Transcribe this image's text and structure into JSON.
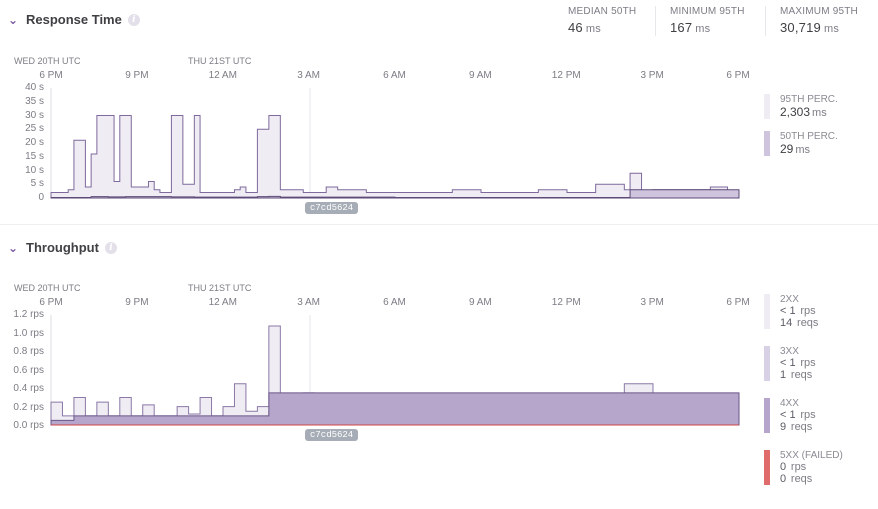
{
  "response_time": {
    "title": "Response Time",
    "info_icon": "i",
    "stats": [
      {
        "label": "MEDIAN 50TH",
        "value": "46",
        "unit": "ms"
      },
      {
        "label": "MINIMUM 95TH",
        "value": "167",
        "unit": "ms"
      },
      {
        "label": "MAXIMUM 95TH",
        "value": "30,719",
        "unit": "ms"
      }
    ],
    "day_labels": [
      "WED 20TH UTC",
      "THU 21ST UTC"
    ],
    "hour_labels": [
      "6 PM",
      "9 PM",
      "12 AM",
      "3 AM",
      "6 AM",
      "9 AM",
      "12 PM",
      "3 PM",
      "6 PM"
    ],
    "y_labels": [
      "40 s",
      "35 s",
      "30 s",
      "25 s",
      "20 s",
      "15 s",
      "10 s",
      "5 s",
      "0"
    ],
    "legend": [
      {
        "label": "95TH PERC.",
        "value": "2,303",
        "unit": "ms",
        "color": "#efecf4"
      },
      {
        "label": "50TH PERC.",
        "value": "29",
        "unit": "ms",
        "color": "#cfc4dd"
      }
    ],
    "deploy": "c7cd5624"
  },
  "throughput": {
    "title": "Throughput",
    "info_icon": "i",
    "day_labels": [
      "WED 20TH UTC",
      "THU 21ST UTC"
    ],
    "hour_labels": [
      "6 PM",
      "9 PM",
      "12 AM",
      "3 AM",
      "6 AM",
      "9 AM",
      "12 PM",
      "3 PM",
      "6 PM"
    ],
    "y_labels": [
      "1.2 rps",
      "1.0 rps",
      "0.8 rps",
      "0.6 rps",
      "0.4 rps",
      "0.2 rps",
      "0.0 rps"
    ],
    "legend": [
      {
        "label": "2XX",
        "rate": "< 1",
        "rate_unit": "rps",
        "reqs": "14",
        "reqs_unit": "reqs",
        "color": "#efecf4"
      },
      {
        "label": "3XX",
        "rate": "< 1",
        "rate_unit": "rps",
        "reqs": "1",
        "reqs_unit": "reqs",
        "color": "#d8d0e4"
      },
      {
        "label": "4XX",
        "rate": "< 1",
        "rate_unit": "rps",
        "reqs": "9",
        "reqs_unit": "reqs",
        "color": "#b6a6cc"
      },
      {
        "label": "5XX (FAILED)",
        "rate": "0",
        "rate_unit": "rps",
        "reqs": "0",
        "reqs_unit": "reqs",
        "color": "#e06b6b"
      }
    ],
    "deploy": "c7cd5624"
  },
  "chart_data": [
    {
      "type": "area",
      "title": "Response Time",
      "ylabel": "",
      "ylim": [
        0,
        40
      ],
      "y_unit": "s",
      "x_range_hours": [
        0,
        24
      ],
      "series": [
        {
          "name": "95TH PERC.",
          "x": [
            0,
            0.6,
            0.8,
            1.2,
            1.4,
            1.6,
            2.2,
            2.4,
            2.8,
            3.0,
            3.4,
            3.6,
            3.8,
            4.2,
            4.6,
            5.0,
            5.2,
            5.6,
            6.0,
            6.4,
            6.6,
            6.8,
            7.2,
            7.6,
            8.0,
            8.8,
            9.2,
            9.6,
            10.0,
            11.0,
            12.0,
            13.0,
            14.0,
            15.0,
            16.0,
            17.0,
            18.0,
            19.0,
            20.0,
            20.2,
            20.6,
            21.0,
            22.0,
            23.0,
            23.6,
            24.0
          ],
          "values": [
            2,
            3,
            21,
            4,
            16,
            30,
            6,
            30,
            4,
            4,
            6,
            3,
            2,
            30,
            5,
            30,
            2,
            2,
            2,
            3,
            4,
            2,
            25,
            30,
            3,
            2,
            2,
            4,
            3,
            2,
            2,
            2,
            3,
            2,
            2,
            3,
            2,
            5,
            3,
            9,
            2,
            3,
            3,
            4,
            2,
            2
          ]
        },
        {
          "name": "50TH PERC.",
          "x": [
            0,
            1.4,
            2.0,
            2.6,
            4.2,
            5.0,
            7.2,
            7.6,
            8.0,
            12.0,
            20.2,
            24.0
          ],
          "values": [
            0.2,
            0.5,
            0.4,
            0.5,
            0.4,
            0.3,
            0.5,
            0.6,
            0.3,
            0.2,
            3,
            0.2
          ]
        }
      ]
    },
    {
      "type": "area",
      "title": "Throughput",
      "ylabel": "",
      "ylim": [
        0,
        1.2
      ],
      "y_unit": "rps",
      "x_range_hours": [
        0,
        24
      ],
      "series": [
        {
          "name": "2XX",
          "x": [
            0,
            0.4,
            0.8,
            1.2,
            1.6,
            2.0,
            2.4,
            2.8,
            3.2,
            3.6,
            4.0,
            4.4,
            4.8,
            5.2,
            5.6,
            6.0,
            6.4,
            6.8,
            7.2,
            7.6,
            8.0,
            8.4,
            8.8,
            9.2,
            9.6,
            10.0,
            11.0,
            12.0,
            13.0,
            14.0,
            15.0,
            15.4,
            16.0,
            17.0,
            18.0,
            19.0,
            20.0,
            21.0,
            22.0,
            23.0,
            24.0
          ],
          "values": [
            0.25,
            0.1,
            0.3,
            0.1,
            0.25,
            0.1,
            0.3,
            0.1,
            0.22,
            0.1,
            0.1,
            0.2,
            0.12,
            0.3,
            0.1,
            0.2,
            0.45,
            0.15,
            0.2,
            1.08,
            0.3,
            0.25,
            0.35,
            0.2,
            0.25,
            0.15,
            0.2,
            0.25,
            0.3,
            0.15,
            0.2,
            0.3,
            0.15,
            0.2,
            0.15,
            0.25,
            0.45,
            0.15,
            0.2,
            0.1,
            0.1
          ]
        },
        {
          "name": "3XX",
          "x": [
            0,
            7.6,
            24.0
          ],
          "values": [
            0,
            0.15,
            0
          ]
        },
        {
          "name": "4XX",
          "x": [
            0,
            0.8,
            2.4,
            7.6,
            24.0
          ],
          "values": [
            0.05,
            0.1,
            0.1,
            0.35,
            0.05
          ]
        },
        {
          "name": "5XX (FAILED)",
          "x": [
            0,
            24.0
          ],
          "values": [
            0,
            0
          ]
        }
      ]
    }
  ]
}
